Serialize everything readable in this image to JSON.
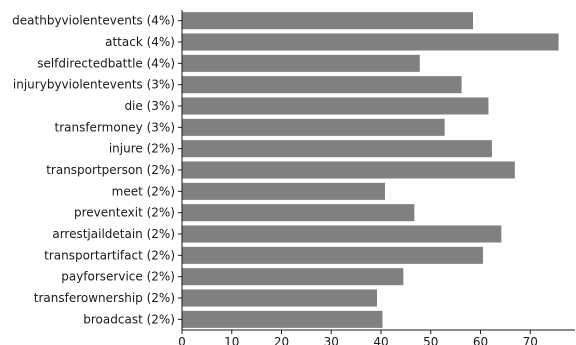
{
  "chart_data": {
    "type": "bar",
    "orientation": "horizontal",
    "categories": [
      "deathbyviolentevents (4%)",
      "attack (4%)",
      "selfdirectedbattle (4%)",
      "injurybyviolentevents (3%)",
      "die (3%)",
      "transfermoney (3%)",
      "injure (2%)",
      "transportperson (2%)",
      "meet (2%)",
      "preventexit (2%)",
      "arrestjaildetain (2%)",
      "transportartifact (2%)",
      "payforservice (2%)",
      "transferownership (2%)",
      "broadcast (2%)"
    ],
    "values": [
      58.5,
      75.7,
      47.8,
      56.2,
      61.6,
      52.8,
      62.3,
      66.9,
      40.8,
      46.7,
      64.2,
      60.5,
      44.5,
      39.2,
      40.3
    ],
    "xlim": [
      0,
      79
    ],
    "xticks": [
      0,
      10,
      20,
      30,
      40,
      50,
      60,
      70
    ],
    "bar_color": "#808080",
    "title": "",
    "xlabel": "",
    "ylabel": "",
    "grid": false,
    "spines": [
      "left",
      "bottom"
    ]
  }
}
